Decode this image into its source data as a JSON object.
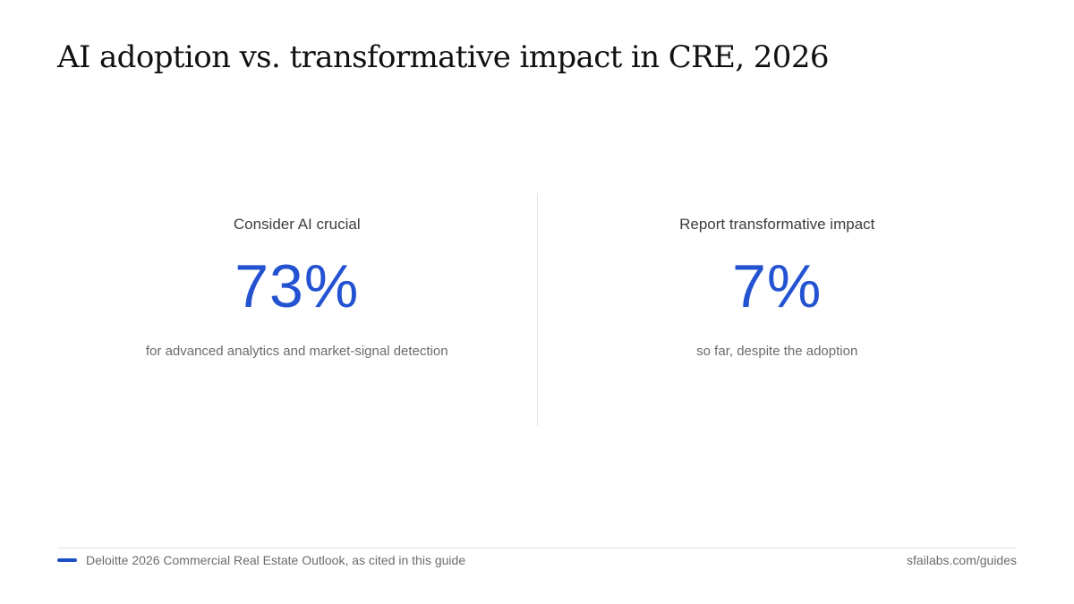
{
  "title": "AI adoption vs. transformative impact in CRE, 2026",
  "stats": [
    {
      "label": "Consider AI crucial",
      "value": "73%",
      "note": "for advanced analytics and market-signal detection"
    },
    {
      "label": "Report transformative impact",
      "value": "7%",
      "note": "so far, despite the adoption"
    }
  ],
  "footer": {
    "source": "Deloitte 2026 Commercial Real Estate Outlook, as cited in this guide",
    "site": "sfailabs.com/guides"
  },
  "colors": {
    "accent": "#2453d1",
    "title": "#111111",
    "muted": "#6b6b6b"
  }
}
